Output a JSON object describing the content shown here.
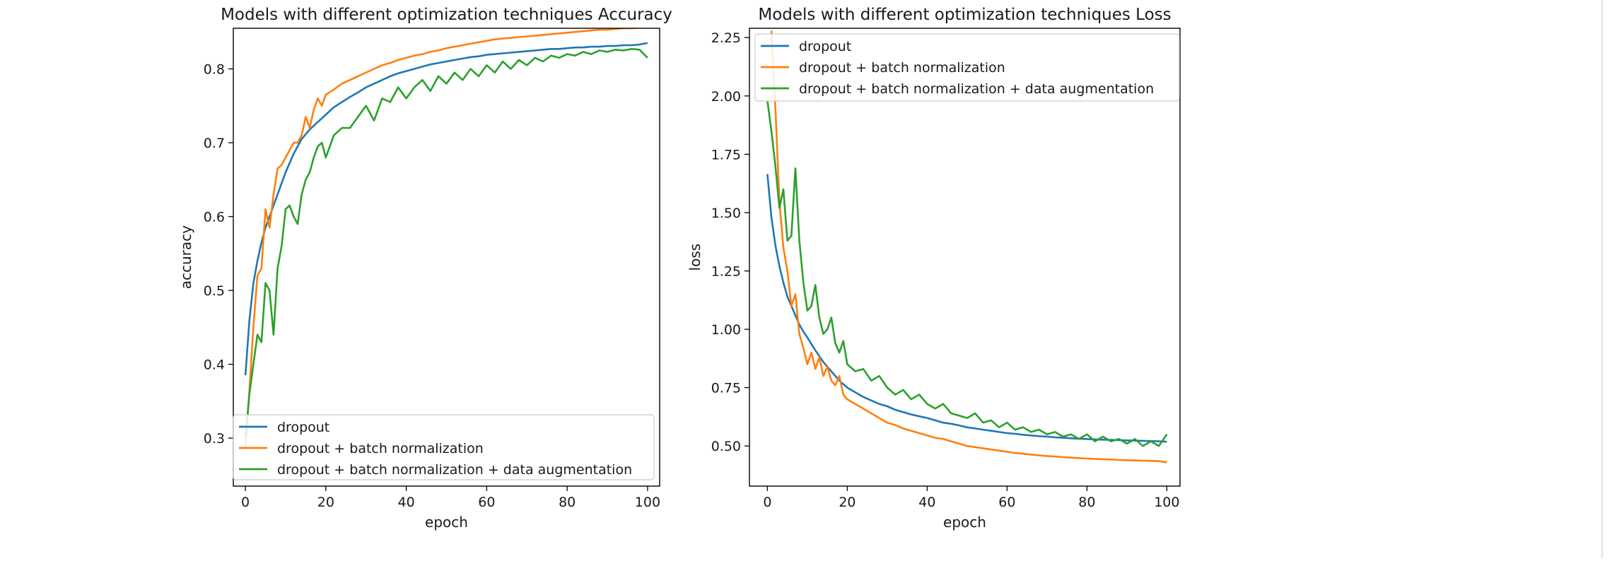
{
  "chart_data": [
    {
      "type": "line",
      "title": "Models with different optimization techniques Accuracy",
      "xlabel": "epoch",
      "ylabel": "accuracy",
      "xlim": [
        -3,
        103
      ],
      "ylim": [
        0.235,
        0.855
      ],
      "xticks": [
        0,
        20,
        40,
        60,
        80,
        100
      ],
      "yticks": [
        0.3,
        0.4,
        0.5,
        0.6,
        0.7,
        0.8
      ],
      "ytick_labels": [
        "0.3",
        "0.4",
        "0.5",
        "0.6",
        "0.7",
        "0.8"
      ],
      "grid": false,
      "legend_position": "lower-left",
      "series": [
        {
          "name": "dropout",
          "color": "#1f77b4",
          "x": [
            0,
            1,
            2,
            3,
            4,
            5,
            6,
            7,
            8,
            9,
            10,
            12,
            14,
            16,
            18,
            20,
            22,
            24,
            26,
            28,
            30,
            32,
            34,
            36,
            38,
            40,
            42,
            44,
            46,
            48,
            50,
            52,
            54,
            56,
            58,
            60,
            62,
            64,
            66,
            68,
            70,
            72,
            74,
            76,
            78,
            80,
            82,
            84,
            86,
            88,
            90,
            92,
            94,
            96,
            98,
            100
          ],
          "y": [
            0.385,
            0.46,
            0.51,
            0.54,
            0.565,
            0.585,
            0.6,
            0.615,
            0.63,
            0.645,
            0.66,
            0.685,
            0.705,
            0.718,
            0.728,
            0.738,
            0.748,
            0.755,
            0.762,
            0.768,
            0.775,
            0.78,
            0.785,
            0.79,
            0.794,
            0.797,
            0.8,
            0.803,
            0.806,
            0.808,
            0.81,
            0.812,
            0.814,
            0.816,
            0.817,
            0.819,
            0.82,
            0.821,
            0.822,
            0.823,
            0.824,
            0.825,
            0.826,
            0.827,
            0.827,
            0.828,
            0.829,
            0.829,
            0.83,
            0.83,
            0.831,
            0.831,
            0.832,
            0.832,
            0.833,
            0.835
          ]
        },
        {
          "name": "dropout + batch normalization",
          "color": "#ff7f0e",
          "x": [
            0,
            1,
            2,
            3,
            4,
            5,
            6,
            7,
            8,
            9,
            10,
            11,
            12,
            13,
            14,
            15,
            16,
            17,
            18,
            19,
            20,
            22,
            24,
            26,
            28,
            30,
            32,
            34,
            36,
            38,
            40,
            42,
            44,
            46,
            48,
            50,
            52,
            54,
            56,
            58,
            60,
            62,
            64,
            66,
            68,
            70,
            72,
            74,
            76,
            78,
            80,
            82,
            84,
            86,
            88,
            90,
            92,
            94,
            96,
            98,
            100
          ],
          "y": [
            0.285,
            0.365,
            0.45,
            0.52,
            0.53,
            0.61,
            0.585,
            0.63,
            0.665,
            0.67,
            0.68,
            0.69,
            0.7,
            0.7,
            0.71,
            0.735,
            0.72,
            0.745,
            0.76,
            0.75,
            0.765,
            0.772,
            0.78,
            0.785,
            0.79,
            0.795,
            0.8,
            0.805,
            0.808,
            0.812,
            0.815,
            0.818,
            0.82,
            0.823,
            0.825,
            0.828,
            0.83,
            0.832,
            0.834,
            0.836,
            0.838,
            0.84,
            0.841,
            0.842,
            0.843,
            0.844,
            0.845,
            0.846,
            0.847,
            0.848,
            0.849,
            0.85,
            0.851,
            0.852,
            0.853,
            0.853,
            0.854,
            0.855,
            0.855,
            0.856,
            0.857
          ]
        },
        {
          "name": "dropout + batch normalization + data augmentation",
          "color": "#2ca02c",
          "x": [
            0,
            1,
            2,
            3,
            4,
            5,
            6,
            7,
            8,
            9,
            10,
            11,
            12,
            13,
            14,
            15,
            16,
            17,
            18,
            19,
            20,
            22,
            24,
            26,
            28,
            30,
            32,
            34,
            36,
            38,
            40,
            42,
            44,
            46,
            48,
            50,
            52,
            54,
            56,
            58,
            60,
            62,
            64,
            66,
            68,
            70,
            72,
            74,
            76,
            78,
            80,
            82,
            84,
            86,
            88,
            90,
            92,
            94,
            96,
            98,
            100
          ],
          "y": [
            0.3,
            0.36,
            0.4,
            0.44,
            0.43,
            0.51,
            0.5,
            0.44,
            0.53,
            0.56,
            0.61,
            0.615,
            0.6,
            0.59,
            0.63,
            0.65,
            0.66,
            0.68,
            0.695,
            0.7,
            0.68,
            0.71,
            0.72,
            0.72,
            0.735,
            0.75,
            0.73,
            0.76,
            0.755,
            0.775,
            0.76,
            0.775,
            0.785,
            0.77,
            0.79,
            0.78,
            0.795,
            0.785,
            0.8,
            0.79,
            0.805,
            0.795,
            0.81,
            0.8,
            0.812,
            0.805,
            0.815,
            0.81,
            0.818,
            0.815,
            0.82,
            0.818,
            0.823,
            0.82,
            0.825,
            0.823,
            0.826,
            0.825,
            0.827,
            0.826,
            0.815
          ]
        }
      ]
    },
    {
      "type": "line",
      "title": "Models with different optimization techniques Loss",
      "xlabel": "epoch",
      "ylabel": "loss",
      "xlim": [
        -4.5,
        103.3
      ],
      "ylim": [
        0.328,
        2.29
      ],
      "xticks": [
        0,
        20,
        40,
        60,
        80,
        100
      ],
      "yticks": [
        0.5,
        0.75,
        1.0,
        1.25,
        1.5,
        1.75,
        2.0,
        2.25
      ],
      "ytick_labels": [
        "0.50",
        "0.75",
        "1.00",
        "1.25",
        "1.50",
        "1.75",
        "2.00",
        "2.25"
      ],
      "grid": false,
      "legend_position": "upper-left",
      "series": [
        {
          "name": "dropout",
          "color": "#1f77b4",
          "x": [
            0,
            1,
            2,
            3,
            4,
            5,
            6,
            7,
            8,
            9,
            10,
            12,
            14,
            16,
            18,
            20,
            22,
            24,
            26,
            28,
            30,
            32,
            34,
            36,
            38,
            40,
            42,
            44,
            46,
            48,
            50,
            52,
            54,
            56,
            58,
            60,
            62,
            64,
            66,
            68,
            70,
            72,
            74,
            76,
            78,
            80,
            82,
            84,
            86,
            88,
            90,
            92,
            94,
            96,
            98,
            100
          ],
          "y": [
            1.665,
            1.48,
            1.36,
            1.27,
            1.2,
            1.14,
            1.1,
            1.06,
            1.02,
            0.99,
            0.965,
            0.91,
            0.86,
            0.82,
            0.78,
            0.75,
            0.73,
            0.71,
            0.695,
            0.68,
            0.67,
            0.655,
            0.645,
            0.635,
            0.627,
            0.62,
            0.61,
            0.6,
            0.595,
            0.588,
            0.58,
            0.575,
            0.57,
            0.565,
            0.56,
            0.555,
            0.552,
            0.548,
            0.545,
            0.542,
            0.54,
            0.537,
            0.535,
            0.533,
            0.531,
            0.53,
            0.528,
            0.527,
            0.526,
            0.525,
            0.524,
            0.523,
            0.522,
            0.521,
            0.52,
            0.518
          ]
        },
        {
          "name": "dropout + batch normalization",
          "color": "#ff7f0e",
          "x": [
            1,
            2,
            3,
            4,
            5,
            6,
            7,
            8,
            9,
            10,
            11,
            12,
            13,
            14,
            15,
            16,
            17,
            18,
            19,
            20,
            22,
            24,
            26,
            28,
            30,
            32,
            34,
            36,
            38,
            40,
            42,
            44,
            46,
            48,
            50,
            52,
            54,
            56,
            58,
            60,
            62,
            64,
            66,
            68,
            70,
            72,
            74,
            76,
            78,
            80,
            82,
            84,
            86,
            88,
            90,
            92,
            94,
            96,
            98,
            100
          ],
          "y": [
            2.28,
            1.95,
            1.55,
            1.35,
            1.25,
            1.1,
            1.15,
            0.98,
            0.92,
            0.85,
            0.9,
            0.83,
            0.88,
            0.8,
            0.84,
            0.78,
            0.76,
            0.8,
            0.72,
            0.7,
            0.68,
            0.66,
            0.64,
            0.62,
            0.6,
            0.59,
            0.575,
            0.565,
            0.555,
            0.545,
            0.535,
            0.53,
            0.52,
            0.51,
            0.5,
            0.495,
            0.49,
            0.485,
            0.48,
            0.475,
            0.47,
            0.467,
            0.463,
            0.46,
            0.457,
            0.455,
            0.452,
            0.45,
            0.448,
            0.446,
            0.445,
            0.443,
            0.442,
            0.44,
            0.439,
            0.438,
            0.437,
            0.436,
            0.435,
            0.43
          ]
        },
        {
          "name": "dropout + batch normalization + data augmentation",
          "color": "#2ca02c",
          "x": [
            0,
            1,
            2,
            3,
            4,
            5,
            6,
            7,
            8,
            9,
            10,
            11,
            12,
            13,
            14,
            15,
            16,
            17,
            18,
            19,
            20,
            22,
            24,
            26,
            28,
            30,
            32,
            34,
            36,
            38,
            40,
            42,
            44,
            46,
            48,
            50,
            52,
            54,
            56,
            58,
            60,
            62,
            64,
            66,
            68,
            70,
            72,
            74,
            76,
            78,
            80,
            82,
            84,
            86,
            88,
            90,
            92,
            94,
            96,
            98,
            100
          ],
          "y": [
            1.98,
            1.85,
            1.7,
            1.52,
            1.6,
            1.38,
            1.4,
            1.69,
            1.38,
            1.2,
            1.08,
            1.1,
            1.19,
            1.05,
            0.98,
            1.0,
            1.05,
            0.94,
            0.9,
            0.95,
            0.85,
            0.82,
            0.83,
            0.78,
            0.8,
            0.75,
            0.72,
            0.74,
            0.7,
            0.72,
            0.68,
            0.66,
            0.68,
            0.64,
            0.63,
            0.62,
            0.64,
            0.6,
            0.61,
            0.58,
            0.6,
            0.57,
            0.58,
            0.56,
            0.57,
            0.55,
            0.56,
            0.54,
            0.55,
            0.53,
            0.55,
            0.52,
            0.54,
            0.52,
            0.53,
            0.51,
            0.53,
            0.5,
            0.52,
            0.5,
            0.55
          ]
        }
      ]
    }
  ]
}
